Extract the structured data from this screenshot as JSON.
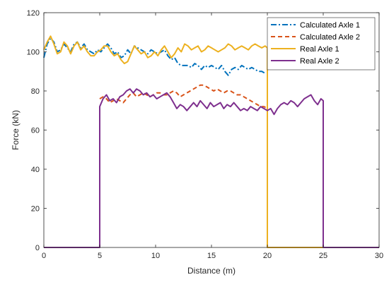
{
  "chart_data": {
    "type": "line",
    "xlabel": "Distance (m)",
    "ylabel": "Force (kN)",
    "xlim": [
      0,
      30
    ],
    "ylim": [
      0,
      120
    ],
    "xticks": [
      0,
      5,
      10,
      15,
      20,
      25,
      30
    ],
    "yticks": [
      0,
      20,
      40,
      60,
      80,
      100,
      120
    ],
    "grid": false,
    "legend_position": "top-right",
    "series": [
      {
        "name": "Calculated Axle 1",
        "color": "#0072BD",
        "dash": "dashdot",
        "x": [
          0,
          0.3,
          0.6,
          0.9,
          1.2,
          1.5,
          1.8,
          2.1,
          2.4,
          2.7,
          3.0,
          3.3,
          3.6,
          3.9,
          4.2,
          4.5,
          4.8,
          5.1,
          5.4,
          5.7,
          6.0,
          6.3,
          6.6,
          6.9,
          7.2,
          7.5,
          7.8,
          8.1,
          8.4,
          8.7,
          9.0,
          9.3,
          9.6,
          9.9,
          10.2,
          10.5,
          10.8,
          11.1,
          11.4,
          11.7,
          12.0,
          12.3,
          12.6,
          12.9,
          13.2,
          13.5,
          13.8,
          14.1,
          14.4,
          14.7,
          15.0,
          15.3,
          15.6,
          15.9,
          16.2,
          16.5,
          16.8,
          17.1,
          17.4,
          17.7,
          18.0,
          18.3,
          18.6,
          18.9,
          19.2,
          19.5,
          19.8
        ],
        "y": [
          97,
          104,
          107,
          105,
          100,
          101,
          104,
          102,
          100,
          104,
          105,
          102,
          104,
          101,
          100,
          99,
          101,
          100,
          102,
          104,
          102,
          99,
          100,
          97,
          98,
          101,
          99,
          103,
          102,
          101,
          100,
          99,
          101,
          100,
          99,
          100,
          101,
          98,
          96,
          97,
          94,
          93,
          93,
          93,
          92,
          94,
          93,
          91,
          93,
          92,
          93,
          92,
          91,
          93,
          90,
          88,
          91,
          92,
          91,
          93,
          92,
          91,
          92,
          91,
          90,
          90,
          89
        ]
      },
      {
        "name": "Calculated Axle 2",
        "color": "#D95319",
        "dash": "dashed",
        "x": [
          5.0,
          5.3,
          5.6,
          5.9,
          6.2,
          6.5,
          6.8,
          7.1,
          7.4,
          7.7,
          8.0,
          8.3,
          8.6,
          8.9,
          9.2,
          9.5,
          9.8,
          10.1,
          10.4,
          10.7,
          11.0,
          11.3,
          11.6,
          11.9,
          12.2,
          12.5,
          12.8,
          13.1,
          13.4,
          13.7,
          14.0,
          14.3,
          14.6,
          14.9,
          15.2,
          15.5,
          15.8,
          16.1,
          16.4,
          16.7,
          17.0,
          17.3,
          17.6,
          17.9,
          18.2,
          18.5,
          18.8,
          19.1,
          19.4,
          19.7,
          20.0
        ],
        "y": [
          76,
          77,
          76,
          74,
          75,
          76,
          75,
          74,
          76,
          78,
          79,
          77,
          78,
          79,
          78,
          77,
          78,
          79,
          79,
          78,
          78,
          79,
          80,
          79,
          77,
          78,
          79,
          80,
          81,
          82,
          83,
          83,
          82,
          81,
          80,
          81,
          80,
          79,
          80,
          80,
          79,
          78,
          78,
          77,
          76,
          75,
          74,
          73,
          72,
          72,
          71
        ]
      },
      {
        "name": "Real Axle 1",
        "color": "#EDB120",
        "dash": "solid",
        "x": [
          0,
          0.3,
          0.6,
          0.9,
          1.2,
          1.5,
          1.8,
          2.1,
          2.4,
          2.7,
          3.0,
          3.3,
          3.6,
          3.9,
          4.2,
          4.5,
          4.8,
          5.1,
          5.4,
          5.7,
          6.0,
          6.3,
          6.6,
          6.9,
          7.2,
          7.5,
          7.8,
          8.1,
          8.4,
          8.7,
          9.0,
          9.3,
          9.6,
          9.9,
          10.2,
          10.5,
          10.8,
          11.1,
          11.4,
          11.7,
          12.0,
          12.3,
          12.6,
          12.9,
          13.2,
          13.5,
          13.8,
          14.1,
          14.4,
          14.7,
          15.0,
          15.3,
          15.6,
          15.9,
          16.2,
          16.5,
          16.8,
          17.1,
          17.4,
          17.7,
          18.0,
          18.3,
          18.6,
          18.9,
          19.2,
          19.5,
          19.8,
          20.0,
          20.0,
          25.0,
          30.0
        ],
        "y": [
          101,
          105,
          108,
          104,
          99,
          100,
          105,
          103,
          99,
          103,
          105,
          101,
          103,
          100,
          98,
          98,
          100,
          101,
          103,
          103,
          100,
          98,
          99,
          96,
          94,
          95,
          99,
          103,
          101,
          99,
          100,
          97,
          98,
          100,
          98,
          101,
          103,
          100,
          97,
          99,
          102,
          100,
          104,
          103,
          101,
          102,
          103,
          100,
          101,
          103,
          102,
          101,
          100,
          101,
          102,
          104,
          103,
          101,
          102,
          103,
          102,
          101,
          103,
          104,
          103,
          102,
          103,
          102,
          0,
          0,
          0
        ]
      },
      {
        "name": "Real Axle 2",
        "color": "#7E2F8E",
        "dash": "solid",
        "x": [
          0,
          5.0,
          5.0,
          5.3,
          5.6,
          5.9,
          6.2,
          6.5,
          6.8,
          7.1,
          7.4,
          7.7,
          8.0,
          8.3,
          8.6,
          8.9,
          9.2,
          9.5,
          9.8,
          10.1,
          10.4,
          10.7,
          11.0,
          11.3,
          11.6,
          11.9,
          12.2,
          12.5,
          12.8,
          13.1,
          13.4,
          13.7,
          14.0,
          14.3,
          14.6,
          14.9,
          15.2,
          15.5,
          15.8,
          16.1,
          16.4,
          16.7,
          17.0,
          17.3,
          17.6,
          17.9,
          18.2,
          18.5,
          18.8,
          19.1,
          19.4,
          19.7,
          20.0,
          20.3,
          20.6,
          20.9,
          21.2,
          21.5,
          21.8,
          22.1,
          22.4,
          22.7,
          23.0,
          23.3,
          23.6,
          23.9,
          24.2,
          24.5,
          24.8,
          25.0,
          25.0,
          30.0
        ],
        "y": [
          0,
          0,
          72,
          76,
          78,
          75,
          76,
          74,
          77,
          78,
          80,
          81,
          79,
          81,
          80,
          78,
          79,
          77,
          78,
          76,
          77,
          78,
          79,
          77,
          74,
          71,
          73,
          72,
          70,
          72,
          74,
          72,
          75,
          73,
          71,
          74,
          72,
          73,
          74,
          71,
          73,
          72,
          74,
          72,
          70,
          71,
          70,
          72,
          71,
          70,
          72,
          71,
          70,
          71,
          68,
          71,
          73,
          74,
          73,
          75,
          74,
          72,
          74,
          76,
          77,
          78,
          75,
          73,
          76,
          75,
          0,
          0
        ]
      }
    ]
  }
}
